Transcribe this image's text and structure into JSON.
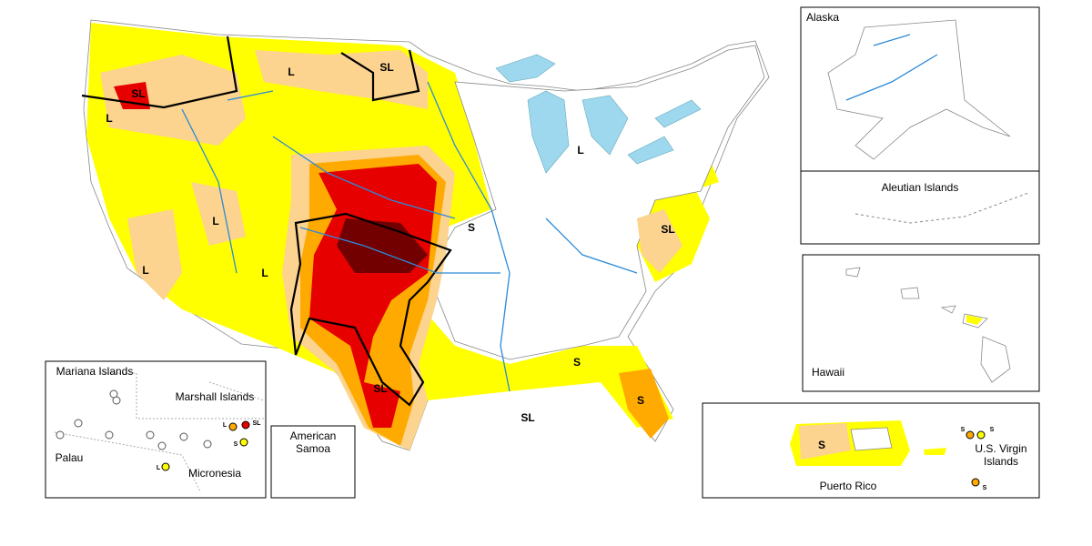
{
  "map": {
    "impact_labels": [
      "SL",
      "L",
      "L",
      "SL",
      "L",
      "S",
      "SL",
      "L",
      "L",
      "L",
      "SL",
      "S",
      "S",
      "SL"
    ],
    "insets": {
      "alaska": {
        "title": "Alaska"
      },
      "aleutian": {
        "title": "Aleutian Islands"
      },
      "hawaii": {
        "title": "Hawaii"
      },
      "puerto_rico": {
        "title": "Puerto Rico",
        "impact_label": "S",
        "virgin_islands": "U.S. Virgin Islands",
        "vi_labels": [
          "S",
          "S",
          "S"
        ]
      },
      "pacific": {
        "mariana": "Mariana Islands",
        "marshall": "Marshall Islands",
        "palau": "Palau",
        "micronesia": "Micronesia",
        "labels": [
          "L",
          "SL",
          "S",
          "L"
        ]
      },
      "samoa": {
        "title": "American Samoa"
      }
    }
  }
}
